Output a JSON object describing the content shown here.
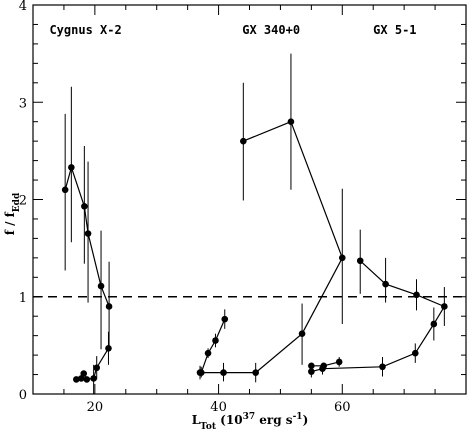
{
  "chart_data": {
    "type": "scatter",
    "xlabel_main": "L",
    "xlabel_sub": "Tot",
    "xlabel_rest": " (10",
    "xlabel_sup1": "37",
    "xlabel_rest2": " erg s",
    "xlabel_sup2": "-1",
    "xlabel_end": ")",
    "ylabel_main": "f / f",
    "ylabel_sub": "Edd",
    "xlim": [
      10,
      80
    ],
    "ylim": [
      0,
      4
    ],
    "x_ticks": [
      20,
      40,
      60
    ],
    "y_ticks": [
      0,
      1,
      2,
      3,
      4
    ],
    "reference_line_y": 1,
    "annotations": [
      {
        "text": "Cygnus X-2",
        "x": 18.5,
        "y": 3.7
      },
      {
        "text": "GX 340+0",
        "x": 48.5,
        "y": 3.7
      },
      {
        "text": "GX 5-1",
        "x": 68.5,
        "y": 3.7
      }
    ],
    "series": [
      {
        "points": [
          {
            "x": 15.2,
            "y": 2.1,
            "ylo": 1.27,
            "yhi": 2.88
          },
          {
            "x": 16.2,
            "y": 2.33,
            "ylo": 1.56,
            "yhi": 3.16
          },
          {
            "x": 18.3,
            "y": 1.93,
            "ylo": 1.34,
            "yhi": 2.55
          },
          {
            "x": 18.9,
            "y": 1.65,
            "ylo": 0.94,
            "yhi": 2.39
          },
          {
            "x": 21.0,
            "y": 1.11,
            "ylo": 0.46,
            "yhi": 1.68
          },
          {
            "x": 22.3,
            "y": 0.9,
            "ylo": 0.47,
            "yhi": 1.36
          }
        ]
      },
      {
        "points": [
          {
            "x": 17.0,
            "y": 0.15,
            "ylo": 0.12,
            "yhi": 0.18
          },
          {
            "x": 17.8,
            "y": 0.16,
            "ylo": 0.13,
            "yhi": 0.19
          },
          {
            "x": 18.2,
            "y": 0.21,
            "ylo": 0.18,
            "yhi": 0.24
          },
          {
            "x": 18.7,
            "y": 0.15,
            "ylo": 0.12,
            "yhi": 0.18
          },
          {
            "x": 19.8,
            "y": 0.16,
            "ylo": 0.0,
            "yhi": 0.3
          },
          {
            "x": 20.3,
            "y": 0.27,
            "ylo": 0.15,
            "yhi": 0.39
          },
          {
            "x": 22.2,
            "y": 0.47,
            "ylo": 0.3,
            "yhi": 0.64
          }
        ]
      },
      {
        "points": [
          {
            "x": 37.2,
            "y": 0.22,
            "ylo": 0.17,
            "yhi": 0.28
          },
          {
            "x": 38.3,
            "y": 0.42,
            "ylo": 0.37,
            "yhi": 0.47
          },
          {
            "x": 39.5,
            "y": 0.55,
            "ylo": 0.48,
            "yhi": 0.62
          },
          {
            "x": 41.0,
            "y": 0.77,
            "ylo": 0.67,
            "yhi": 0.87
          }
        ]
      },
      {
        "points": [
          {
            "x": 37.0,
            "y": 0.22,
            "ylo": 0.15,
            "yhi": 0.29
          },
          {
            "x": 40.8,
            "y": 0.22,
            "ylo": 0.13,
            "yhi": 0.32
          },
          {
            "x": 46.0,
            "y": 0.22,
            "ylo": 0.12,
            "yhi": 0.32
          },
          {
            "x": 53.5,
            "y": 0.62,
            "ylo": 0.3,
            "yhi": 0.93
          },
          {
            "x": 60.0,
            "y": 1.4,
            "ylo": 0.72,
            "yhi": 2.11
          },
          {
            "x": 51.7,
            "y": 2.8,
            "ylo": 2.1,
            "yhi": 3.5
          },
          {
            "x": 44.0,
            "y": 2.6,
            "ylo": 1.99,
            "yhi": 3.2
          }
        ]
      },
      {
        "points": [
          {
            "x": 55.0,
            "y": 0.23,
            "ylo": 0.17,
            "yhi": 0.29
          },
          {
            "x": 56.8,
            "y": 0.26,
            "ylo": 0.2,
            "yhi": 0.32
          },
          {
            "x": 66.5,
            "y": 0.28,
            "ylo": 0.18,
            "yhi": 0.38
          },
          {
            "x": 71.8,
            "y": 0.42,
            "ylo": 0.32,
            "yhi": 0.52
          },
          {
            "x": 74.8,
            "y": 0.72,
            "ylo": 0.55,
            "yhi": 0.89
          },
          {
            "x": 76.5,
            "y": 0.9,
            "ylo": 0.7,
            "yhi": 1.1
          },
          {
            "x": 72.0,
            "y": 1.02,
            "ylo": 0.86,
            "yhi": 1.18
          },
          {
            "x": 67.0,
            "y": 1.13,
            "ylo": 0.94,
            "yhi": 1.4
          },
          {
            "x": 62.9,
            "y": 1.37,
            "ylo": 1.03,
            "yhi": 1.69
          }
        ]
      },
      {
        "points": [
          {
            "x": 55.0,
            "y": 0.29,
            "ylo": 0.26,
            "yhi": 0.32
          },
          {
            "x": 57.0,
            "y": 0.29,
            "ylo": 0.26,
            "yhi": 0.32
          },
          {
            "x": 59.5,
            "y": 0.33,
            "ylo": 0.28,
            "yhi": 0.38
          }
        ]
      }
    ]
  }
}
